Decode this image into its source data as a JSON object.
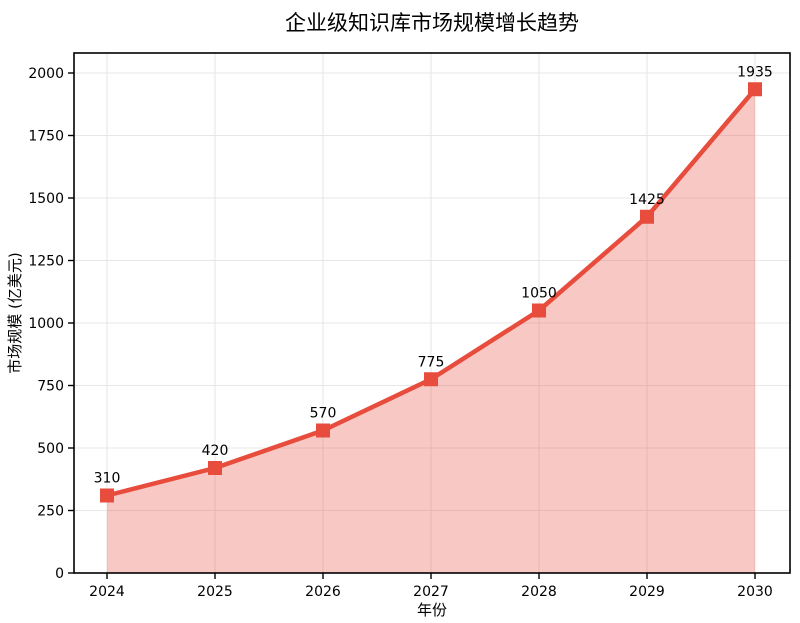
{
  "chart_data": {
    "type": "line",
    "title": "企业级知识库市场规模增长趋势",
    "xlabel": "年份",
    "ylabel": "市场规模 (亿美元)",
    "x": [
      2024,
      2025,
      2026,
      2027,
      2028,
      2029,
      2030
    ],
    "values": [
      310,
      420,
      570,
      775,
      1050,
      1425,
      1935
    ],
    "point_labels": [
      "310",
      "420",
      "570",
      "775",
      "1050",
      "1425",
      "1935"
    ],
    "yticks": [
      0,
      250,
      500,
      750,
      1000,
      1250,
      1500,
      1750,
      2000
    ],
    "ylim": [
      0,
      2080
    ],
    "grid": true,
    "legend": "none",
    "marker": "square",
    "area_fill": true,
    "colors": {
      "line": "#e74c3c",
      "marker": "#e74c3c",
      "fill": "rgba(231,76,60,0.30)",
      "grid": "#e7e7e7",
      "frame": "#000000",
      "text": "#000000"
    }
  }
}
